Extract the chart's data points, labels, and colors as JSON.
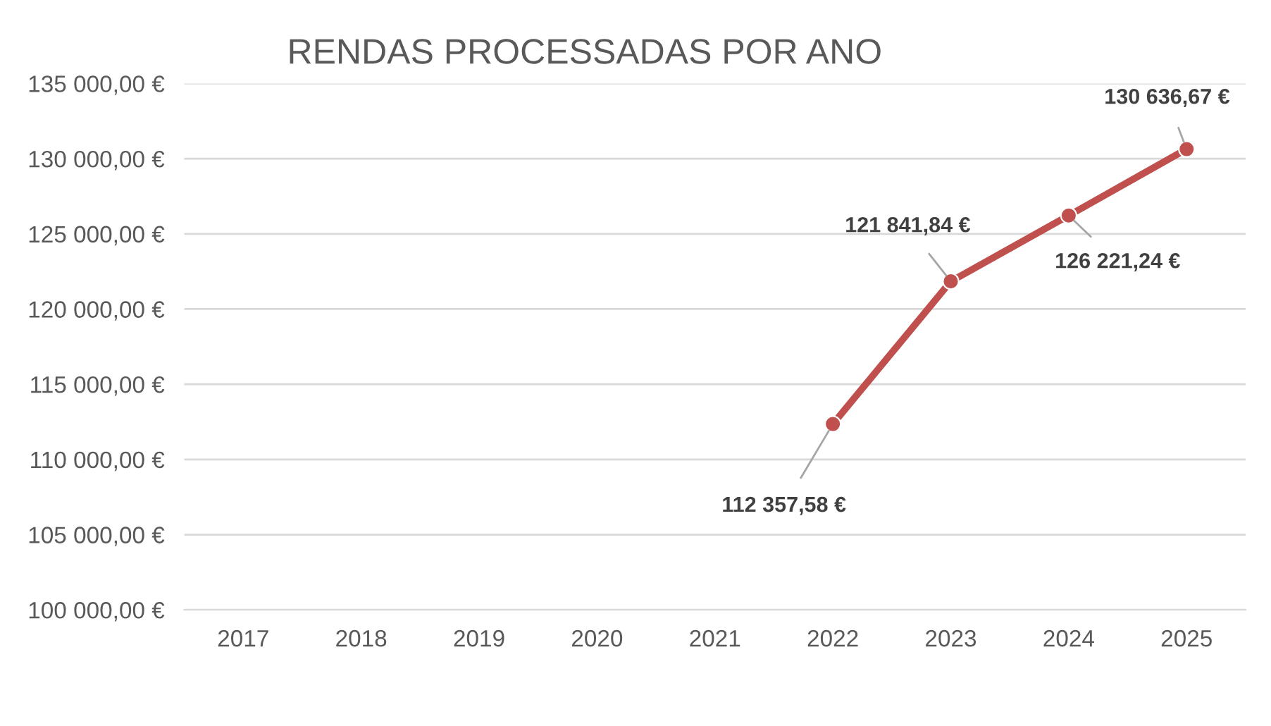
{
  "chart_data": {
    "type": "line",
    "title": "RENDAS PROCESSADAS POR ANO",
    "categories": [
      "2017",
      "2018",
      "2019",
      "2020",
      "2021",
      "2022",
      "2023",
      "2024",
      "2025"
    ],
    "series": [
      {
        "color": "#c0504d",
        "values": [
          null,
          null,
          null,
          null,
          null,
          112357.58,
          121841.84,
          126221.24,
          130636.67
        ],
        "value_labels": [
          null,
          null,
          null,
          null,
          null,
          "112 357,58 €",
          "121 841,84 €",
          "126 221,24 €",
          "130 636,67 €"
        ]
      }
    ],
    "ylim": [
      100000,
      135000
    ],
    "yticks": [
      {
        "value": 100000,
        "label": "100 000,00 €"
      },
      {
        "value": 105000,
        "label": "105 000,00 €"
      },
      {
        "value": 110000,
        "label": "110 000,00 €"
      },
      {
        "value": 115000,
        "label": "115 000,00 €"
      },
      {
        "value": 120000,
        "label": "120 000,00 €"
      },
      {
        "value": 125000,
        "label": "125 000,00 €"
      },
      {
        "value": 130000,
        "label": "130 000,00 €"
      },
      {
        "value": 135000,
        "label": "135 000,00 €"
      }
    ],
    "grid": "y",
    "marker": "circle",
    "line_style": "solid",
    "legend": false
  }
}
